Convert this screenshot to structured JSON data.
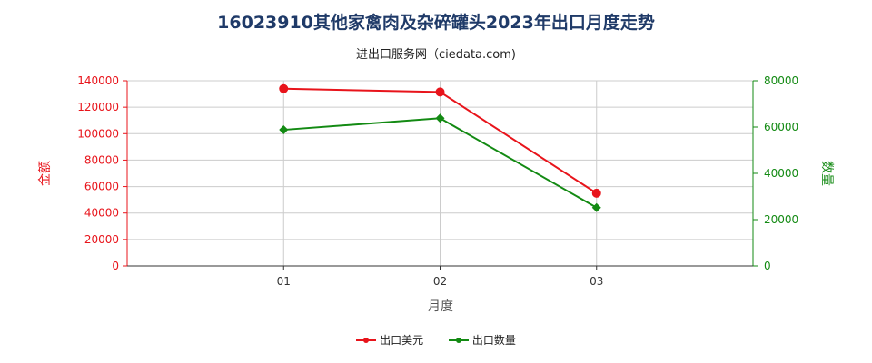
{
  "chart_data": {
    "type": "line",
    "title": "16023910其他家禽肉及杂碎罐头2023年出口月度走势",
    "subtitle": "进出口服务网（ciedata.com)",
    "xlabel": "月度",
    "ylabel_left": "金额",
    "ylabel_right": "数量",
    "categories": [
      "01",
      "02",
      "03"
    ],
    "y_left": {
      "min": 0,
      "max": 140000,
      "ticks": [
        "0",
        "20000",
        "40000",
        "60000",
        "80000",
        "100000",
        "120000",
        "140000"
      ]
    },
    "y_right": {
      "min": 0,
      "max": 80000,
      "ticks": [
        "0",
        "20000",
        "40000",
        "60000",
        "80000"
      ]
    },
    "series": [
      {
        "name": "出口美元",
        "axis": "left",
        "color": "#e8141b",
        "marker": "circle",
        "values": [
          134000,
          131500,
          55000
        ]
      },
      {
        "name": "出口数量",
        "axis": "right",
        "color": "#138a13",
        "marker": "diamond",
        "values": [
          58800,
          63800,
          25200
        ]
      }
    ],
    "grid": true,
    "legend_position": "bottom"
  }
}
